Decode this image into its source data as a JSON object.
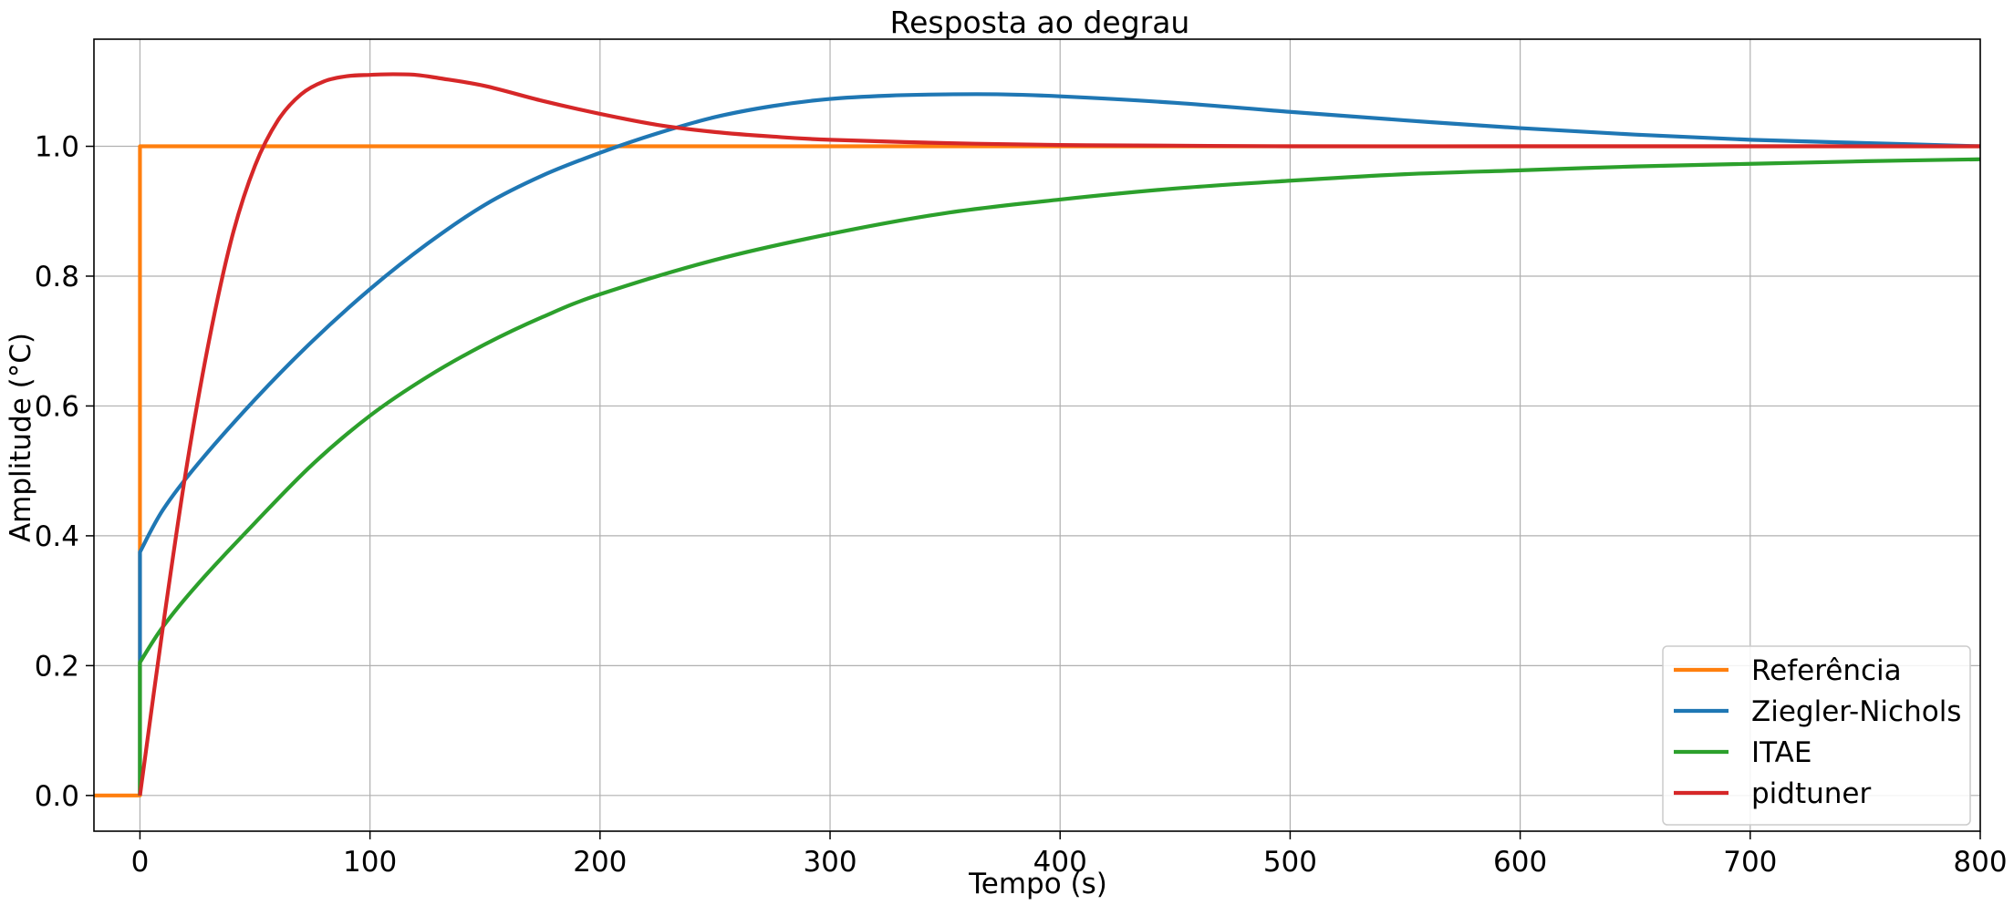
{
  "chart_data": {
    "type": "line",
    "title": "Resposta ao degrau",
    "xlabel": "Tempo (s)",
    "ylabel": "Amplitude (°C)",
    "xlim": [
      -20,
      800
    ],
    "ylim": [
      -0.055,
      1.165
    ],
    "xticks": [
      0,
      100,
      200,
      300,
      400,
      500,
      600,
      700,
      800
    ],
    "yticks": [
      0.0,
      0.2,
      0.4,
      0.6,
      0.8,
      1.0
    ],
    "grid": true,
    "legend_position": "lower-right",
    "series": [
      {
        "name": "Referência",
        "color": "#ff7f0e",
        "x": [
          -20,
          0,
          0,
          800
        ],
        "y": [
          0.0,
          0.0,
          1.0,
          1.0
        ]
      },
      {
        "name": "Ziegler-Nichols",
        "color": "#1f77b4",
        "x": [
          0,
          0,
          10,
          25,
          50,
          75,
          100,
          125,
          150,
          175,
          200,
          225,
          250,
          275,
          300,
          325,
          350,
          375,
          400,
          450,
          500,
          550,
          600,
          650,
          700,
          750,
          800
        ],
        "y": [
          0.0,
          0.375,
          0.44,
          0.51,
          0.61,
          0.7,
          0.78,
          0.85,
          0.91,
          0.955,
          0.99,
          1.02,
          1.045,
          1.062,
          1.073,
          1.078,
          1.08,
          1.08,
          1.077,
          1.067,
          1.053,
          1.04,
          1.028,
          1.018,
          1.01,
          1.005,
          1.0
        ]
      },
      {
        "name": "ITAE",
        "color": "#2ca02c",
        "x": [
          0,
          0,
          10,
          25,
          50,
          75,
          100,
          125,
          150,
          175,
          200,
          250,
          300,
          350,
          400,
          450,
          500,
          550,
          600,
          650,
          700,
          750,
          800
        ],
        "y": [
          0.0,
          0.205,
          0.26,
          0.325,
          0.42,
          0.51,
          0.585,
          0.645,
          0.695,
          0.737,
          0.772,
          0.825,
          0.865,
          0.897,
          0.918,
          0.935,
          0.947,
          0.957,
          0.963,
          0.969,
          0.973,
          0.977,
          0.98
        ]
      },
      {
        "name": "pidtuner",
        "color": "#d62728",
        "x": [
          0,
          10,
          20,
          30,
          40,
          50,
          60,
          70,
          80,
          90,
          100,
          110,
          120,
          130,
          150,
          175,
          200,
          225,
          250,
          275,
          300,
          350,
          400,
          450,
          500,
          600,
          700,
          800
        ],
        "y": [
          0.0,
          0.26,
          0.5,
          0.7,
          0.86,
          0.97,
          1.04,
          1.08,
          1.1,
          1.108,
          1.11,
          1.111,
          1.11,
          1.105,
          1.093,
          1.07,
          1.05,
          1.033,
          1.022,
          1.015,
          1.01,
          1.005,
          1.002,
          1.001,
          1.0,
          1.0,
          1.0,
          1.0
        ]
      }
    ]
  }
}
